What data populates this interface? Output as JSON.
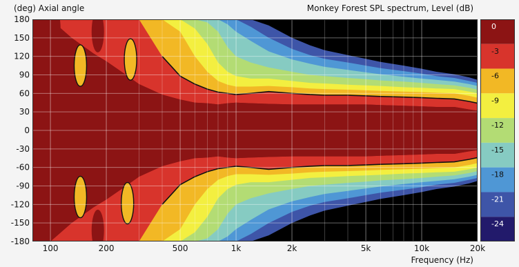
{
  "chart_data": {
    "type": "heatmap",
    "title": "Monkey Forest SPL spectrum, Level  (dB)",
    "ylabel": "(deg)  Axial angle",
    "xlabel": "Frequency  (Hz)",
    "x_scale": "log",
    "xlim": [
      80,
      20000
    ],
    "ylim": [
      -180,
      180
    ],
    "x_ticks": [
      {
        "v": 100,
        "label": "100"
      },
      {
        "v": 200,
        "label": "200"
      },
      {
        "v": 500,
        "label": "500"
      },
      {
        "v": 1000,
        "label": "1k"
      },
      {
        "v": 2000,
        "label": "2k"
      },
      {
        "v": 5000,
        "label": "5k"
      },
      {
        "v": 10000,
        "label": "10k"
      },
      {
        "v": 20000,
        "label": "20k"
      }
    ],
    "x_minor_gridlines": [
      300,
      400,
      600,
      700,
      800,
      900,
      3000,
      4000,
      6000,
      7000,
      8000,
      9000
    ],
    "y_ticks": [
      {
        "v": 180,
        "label": "180"
      },
      {
        "v": 150,
        "label": "150"
      },
      {
        "v": 120,
        "label": "120"
      },
      {
        "v": 90,
        "label": "90"
      },
      {
        "v": 60,
        "label": "60"
      },
      {
        "v": 30,
        "label": "30"
      },
      {
        "v": 0,
        "label": "0"
      },
      {
        "v": -30,
        "label": "-30"
      },
      {
        "v": -60,
        "label": "-60"
      },
      {
        "v": -90,
        "label": "-90"
      },
      {
        "v": -120,
        "label": "-120"
      },
      {
        "v": -150,
        "label": "-150"
      },
      {
        "v": -180,
        "label": "-180"
      }
    ],
    "grid": true,
    "colorbar": {
      "unit": "dB",
      "bands": [
        {
          "label": "0",
          "color": "#8c1414"
        },
        {
          "label": "-3",
          "color": "#d8342c"
        },
        {
          "label": "-6",
          "color": "#f2b825"
        },
        {
          "label": "-9",
          "color": "#f3ef40"
        },
        {
          "label": "-12",
          "color": "#b3dc74"
        },
        {
          "label": "-15",
          "color": "#86cbc2"
        },
        {
          "label": "-18",
          "color": "#4f97d5"
        },
        {
          "label": "-21",
          "color": "#3e55a8"
        },
        {
          "label": "-24",
          "color": "#221a6b"
        }
      ],
      "floor_color": "#000000"
    },
    "contour_level_db": -6,
    "beamwidth_envelopes": {
      "description": "approximate half-angle (deg) reached by each level band vs frequency (symmetric about 0 deg)",
      "freqs": [
        80,
        100,
        130,
        170,
        200,
        250,
        300,
        400,
        500,
        600,
        700,
        800,
        900,
        1000,
        1200,
        1500,
        2000,
        2500,
        3000,
        4000,
        5000,
        6000,
        8000,
        10000,
        12000,
        15000,
        18000,
        20000
      ],
      "bands": [
        {
          "level_db": -3,
          "half_angle": [
            180,
            180,
            150,
            125,
            112,
            92,
            75,
            58,
            50,
            45,
            44,
            42,
            44,
            45,
            44,
            43,
            42,
            42,
            42,
            42,
            42,
            41,
            40,
            39,
            38,
            38,
            34,
            32
          ]
        },
        {
          "level_db": -6,
          "half_angle": [
            180,
            180,
            180,
            180,
            180,
            180,
            180,
            120,
            88,
            75,
            67,
            62,
            60,
            58,
            60,
            63,
            60,
            58,
            57,
            57,
            56,
            55,
            54,
            53,
            52,
            51,
            47,
            44
          ]
        },
        {
          "level_db": -9,
          "half_angle": [
            180,
            180,
            180,
            180,
            180,
            180,
            180,
            180,
            160,
            120,
            95,
            80,
            74,
            71,
            71,
            72,
            70,
            68,
            67,
            66,
            65,
            64,
            63,
            62,
            61,
            60,
            56,
            53
          ]
        },
        {
          "level_db": -12,
          "half_angle": [
            180,
            180,
            180,
            180,
            180,
            180,
            180,
            180,
            180,
            165,
            140,
            110,
            95,
            88,
            84,
            84,
            80,
            77,
            76,
            74,
            73,
            72,
            70,
            69,
            68,
            67,
            63,
            60
          ]
        },
        {
          "level_db": -15,
          "half_angle": [
            180,
            180,
            180,
            180,
            180,
            180,
            180,
            180,
            180,
            180,
            175,
            160,
            135,
            120,
            110,
            102,
            95,
            90,
            88,
            85,
            83,
            81,
            79,
            77,
            75,
            73,
            69,
            66
          ]
        },
        {
          "level_db": -18,
          "half_angle": [
            180,
            180,
            180,
            180,
            180,
            180,
            180,
            180,
            180,
            180,
            180,
            180,
            172,
            160,
            145,
            128,
            115,
            108,
            103,
            98,
            94,
            91,
            87,
            84,
            82,
            79,
            75,
            72
          ]
        },
        {
          "level_db": -21,
          "half_angle": [
            180,
            180,
            180,
            180,
            180,
            180,
            180,
            180,
            180,
            180,
            180,
            180,
            180,
            180,
            168,
            150,
            132,
            122,
            116,
            110,
            105,
            101,
            96,
            92,
            88,
            85,
            80,
            77
          ]
        },
        {
          "level_db": -24,
          "half_angle": [
            180,
            180,
            180,
            180,
            180,
            180,
            180,
            180,
            180,
            180,
            180,
            180,
            180,
            180,
            180,
            170,
            150,
            138,
            130,
            122,
            116,
            111,
            105,
            100,
            95,
            91,
            86,
            82
          ]
        }
      ]
    },
    "lobes": [
      {
        "f": 145,
        "angle": 105,
        "level_db": -6
      },
      {
        "f": 270,
        "angle": 115,
        "level_db": -6
      },
      {
        "f": 145,
        "angle": -108,
        "level_db": -6
      },
      {
        "f": 260,
        "angle": -118,
        "level_db": -6
      },
      {
        "f": 105,
        "angle": 165,
        "level_db": 0
      },
      {
        "f": 180,
        "angle": 160,
        "level_db": 0
      },
      {
        "f": 180,
        "angle": -162,
        "level_db": 0
      }
    ]
  }
}
